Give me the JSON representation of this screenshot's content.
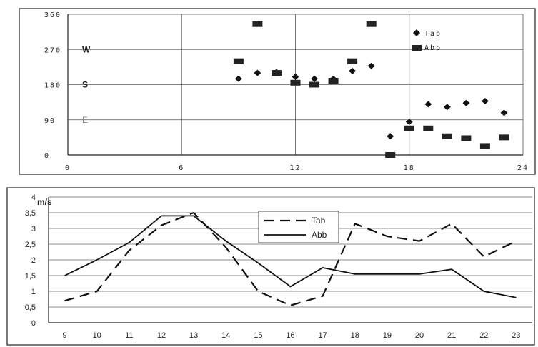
{
  "chart_data": [
    {
      "type": "scatter",
      "title": "",
      "xlabel": "",
      "ylabel": "",
      "xlim": [
        0,
        24
      ],
      "ylim": [
        0,
        360
      ],
      "x_ticks": [
        "0",
        "6",
        "12",
        "18",
        "24"
      ],
      "y_ticks": [
        "0",
        "90",
        "180",
        "270",
        "360"
      ],
      "direction_labels": [
        {
          "text": "W",
          "value": 270
        },
        {
          "text": "S",
          "value": 180
        },
        {
          "text": "E",
          "value": 90
        }
      ],
      "legend": "top-right",
      "series": [
        {
          "name": "Tab",
          "marker": "diamond",
          "points": [
            [
              9,
              195
            ],
            [
              10,
              210
            ],
            [
              11,
              212
            ],
            [
              12,
              200
            ],
            [
              13,
              195
            ],
            [
              14,
              195
            ],
            [
              15,
              215
            ],
            [
              16,
              228
            ],
            [
              17,
              48
            ],
            [
              18,
              85
            ],
            [
              19,
              130
            ],
            [
              20,
              123
            ],
            [
              21,
              133
            ],
            [
              22,
              138
            ],
            [
              23,
              108
            ]
          ]
        },
        {
          "name": "Abb",
          "marker": "square",
          "points": [
            [
              9,
              240
            ],
            [
              10,
              335
            ],
            [
              11,
              210
            ],
            [
              12,
              185
            ],
            [
              13,
              180
            ],
            [
              14,
              190
            ],
            [
              15,
              240
            ],
            [
              16,
              335
            ],
            [
              17,
              0
            ],
            [
              18,
              68
            ],
            [
              19,
              68
            ],
            [
              20,
              48
            ],
            [
              21,
              43
            ],
            [
              22,
              23
            ],
            [
              23,
              45
            ]
          ]
        }
      ]
    },
    {
      "type": "line",
      "title": "",
      "xlabel": "",
      "ylabel": "m/s",
      "ylim": [
        0,
        4
      ],
      "categories": [
        "9",
        "10",
        "11",
        "12",
        "13",
        "14",
        "15",
        "16",
        "17",
        "18",
        "19",
        "20",
        "21",
        "22",
        "23"
      ],
      "y_ticks": [
        "0",
        "0,5",
        "1",
        "1,5",
        "2",
        "2,5",
        "3",
        "3,5",
        "4"
      ],
      "legend": "top-center",
      "series": [
        {
          "name": "Tab",
          "style": "dashed",
          "values": [
            0.7,
            1.0,
            2.3,
            3.1,
            3.5,
            2.4,
            1.0,
            0.55,
            0.85,
            3.15,
            2.75,
            2.6,
            3.15,
            2.1,
            2.6
          ]
        },
        {
          "name": "Abb",
          "style": "solid",
          "values": [
            1.5,
            2.0,
            2.55,
            3.4,
            3.4,
            2.6,
            1.9,
            1.15,
            1.75,
            1.55,
            1.55,
            1.55,
            1.7,
            1.0,
            0.8
          ]
        }
      ]
    }
  ]
}
